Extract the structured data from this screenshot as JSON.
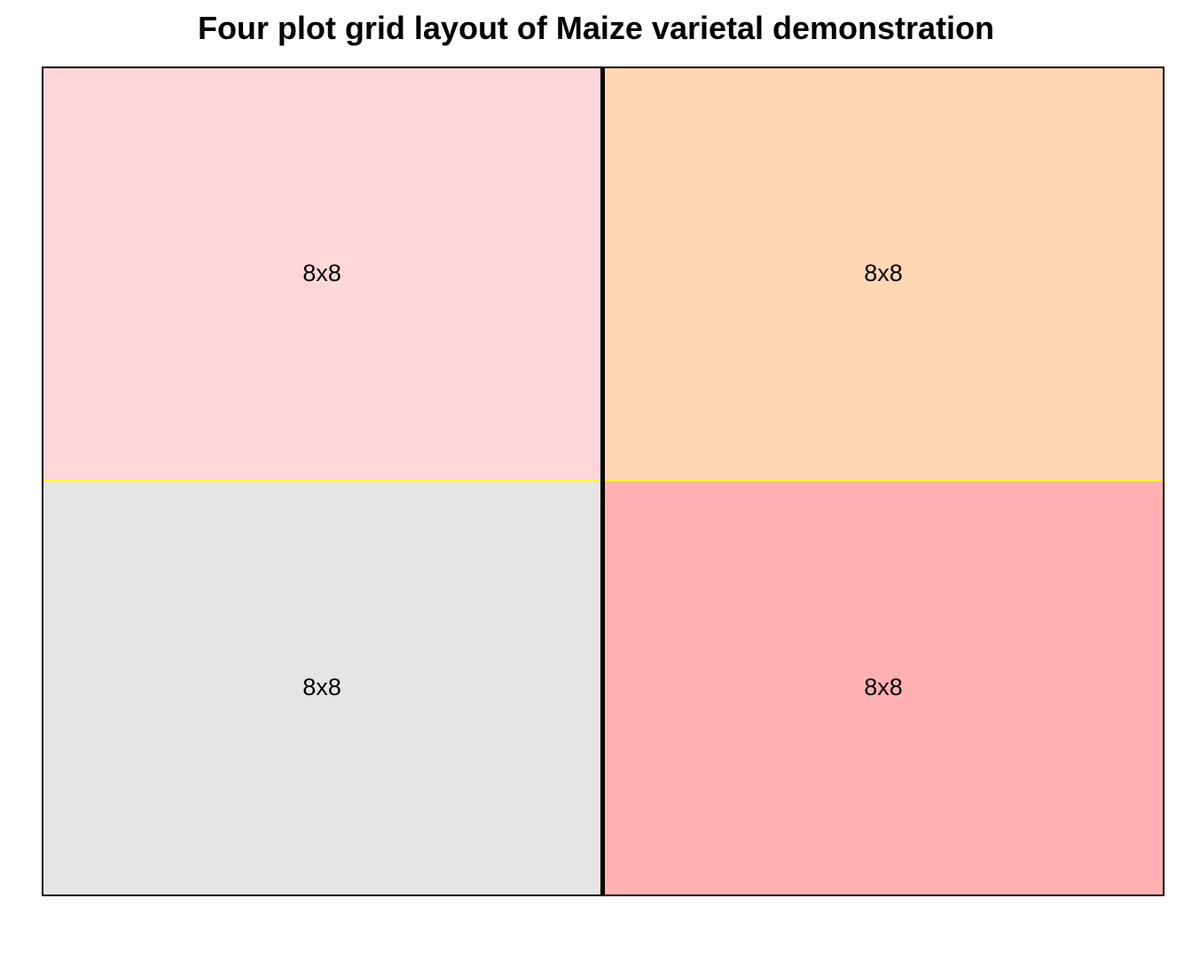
{
  "title": "Four plot grid layout of Maize varietal demonstration",
  "plots": [
    {
      "label": "8x8",
      "color": "#FFD7D8",
      "row": 0,
      "col": 0
    },
    {
      "label": "8x8",
      "color": "#FFD7B2",
      "row": 0,
      "col": 1
    },
    {
      "label": "8x8",
      "color": "#E5E5E5",
      "row": 1,
      "col": 0
    },
    {
      "label": "8x8",
      "color": "#FFB1B1",
      "row": 1,
      "col": 1
    }
  ],
  "colors": {
    "vertical_divider": "#000000",
    "horizontal_divider": "#FFFF00",
    "border": "#000000"
  }
}
